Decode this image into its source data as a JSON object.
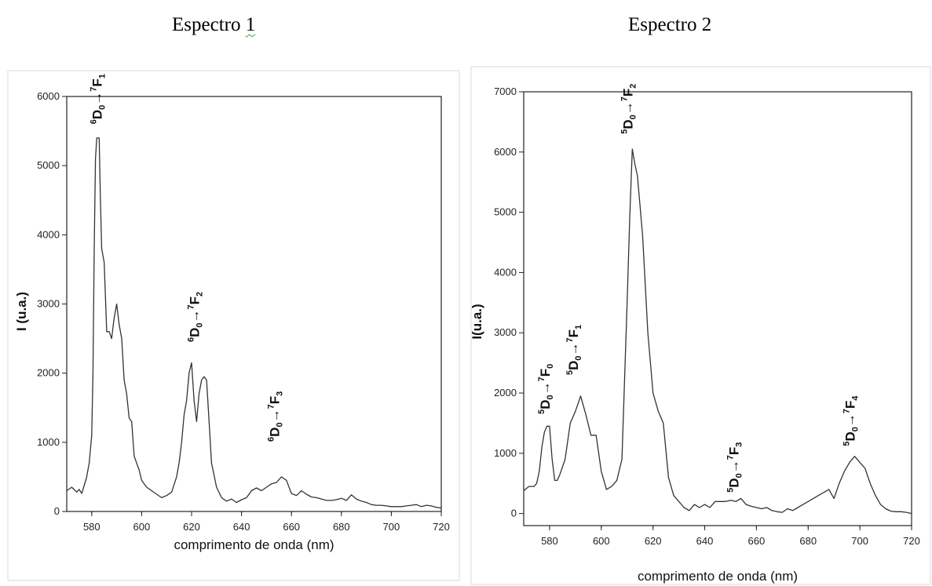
{
  "titles": {
    "left_main": "Espectro ",
    "left_num": "1",
    "right": "Espectro 2"
  },
  "chart_data": [
    {
      "type": "line",
      "title": "Espectro 1",
      "xlabel": "comprimento de onda (nm)",
      "ylabel": "I (u.a.)",
      "xlim": [
        570,
        720
      ],
      "ylim": [
        0,
        6000
      ],
      "xticks": [
        580,
        600,
        620,
        640,
        660,
        680,
        700,
        720
      ],
      "yticks": [
        0,
        1000,
        2000,
        3000,
        4000,
        5000,
        6000
      ],
      "grid": false,
      "series": [
        {
          "x": [
            570,
            572,
            574,
            575,
            576,
            577,
            578,
            579,
            580,
            580.5,
            581,
            581.5,
            582,
            583,
            583.5,
            584,
            585,
            586,
            587,
            588,
            589,
            590,
            591,
            592,
            593,
            594,
            595,
            596,
            597,
            598,
            599,
            600,
            602,
            604,
            606,
            608,
            610,
            612,
            614,
            615,
            616,
            617,
            618,
            619,
            620,
            621,
            622,
            623,
            624,
            625,
            626,
            627,
            628,
            630,
            632,
            634,
            636,
            638,
            640,
            642,
            644,
            646,
            648,
            650,
            652,
            654,
            656,
            658,
            660,
            662,
            664,
            666,
            668,
            670,
            672,
            674,
            676,
            678,
            680,
            682,
            684,
            686,
            688,
            690,
            692,
            694,
            696,
            698,
            700,
            702,
            704,
            706,
            708,
            710,
            712,
            714,
            716,
            718,
            720
          ],
          "y": [
            300,
            350,
            280,
            320,
            260,
            380,
            500,
            700,
            1100,
            2000,
            3800,
            5100,
            5400,
            5400,
            4500,
            3800,
            3600,
            2600,
            2600,
            2500,
            2800,
            3000,
            2700,
            2500,
            1900,
            1700,
            1350,
            1300,
            800,
            700,
            600,
            450,
            350,
            300,
            250,
            200,
            230,
            280,
            500,
            700,
            1000,
            1400,
            1600,
            2000,
            2150,
            1600,
            1300,
            1700,
            1900,
            1950,
            1900,
            1300,
            700,
            350,
            200,
            150,
            180,
            130,
            170,
            200,
            300,
            340,
            300,
            350,
            400,
            420,
            500,
            450,
            260,
            230,
            300,
            250,
            210,
            200,
            180,
            160,
            160,
            170,
            190,
            160,
            240,
            180,
            150,
            130,
            100,
            90,
            90,
            80,
            70,
            70,
            70,
            80,
            90,
            100,
            70,
            90,
            80,
            60,
            50
          ]
        }
      ],
      "annotations": [
        {
          "D": "6",
          "Dsub": "0",
          "F": "7",
          "Fsub": "1",
          "x": 584,
          "y": 5600
        },
        {
          "D": "6",
          "Dsub": "0",
          "F": "7",
          "Fsub": "2",
          "x": 623,
          "y": 2450
        },
        {
          "D": "6",
          "Dsub": "0",
          "F": "7",
          "Fsub": "3",
          "x": 655,
          "y": 1010
        }
      ]
    },
    {
      "type": "line",
      "title": "Espectro 2",
      "xlabel": "comprimento de onda (nm)",
      "ylabel": "I(u.a.)",
      "xlim": [
        570,
        720
      ],
      "ylim": [
        -200,
        7000
      ],
      "xticks": [
        580,
        600,
        620,
        640,
        660,
        680,
        700,
        720
      ],
      "yticks": [
        0,
        1000,
        2000,
        3000,
        4000,
        5000,
        6000,
        7000
      ],
      "grid": false,
      "series": [
        {
          "x": [
            570,
            572,
            574,
            575,
            576,
            577,
            578,
            579,
            580,
            581,
            582,
            583,
            584,
            586,
            588,
            590,
            592,
            594,
            596,
            598,
            600,
            602,
            604,
            606,
            608,
            610,
            611,
            612,
            613,
            614,
            616,
            618,
            620,
            622,
            624,
            626,
            628,
            630,
            632,
            634,
            636,
            638,
            640,
            642,
            644,
            646,
            648,
            650,
            652,
            654,
            656,
            658,
            660,
            662,
            664,
            666,
            668,
            670,
            672,
            674,
            676,
            678,
            680,
            682,
            684,
            686,
            688,
            690,
            692,
            694,
            696,
            698,
            700,
            702,
            704,
            706,
            708,
            710,
            712,
            714,
            716,
            718,
            720
          ],
          "y": [
            380,
            450,
            450,
            500,
            700,
            1100,
            1350,
            1450,
            1450,
            900,
            550,
            550,
            650,
            900,
            1500,
            1700,
            1950,
            1650,
            1300,
            1300,
            700,
            400,
            450,
            550,
            900,
            3500,
            4900,
            6050,
            5800,
            5600,
            4600,
            3000,
            2000,
            1700,
            1500,
            600,
            300,
            200,
            100,
            50,
            150,
            100,
            150,
            100,
            200,
            200,
            200,
            220,
            200,
            250,
            150,
            120,
            100,
            80,
            100,
            50,
            30,
            20,
            80,
            50,
            100,
            150,
            200,
            250,
            300,
            350,
            400,
            250,
            500,
            700,
            850,
            950,
            850,
            750,
            500,
            300,
            150,
            80,
            40,
            30,
            30,
            20,
            0
          ]
        }
      ],
      "annotations": [
        {
          "D": "5",
          "Dsub": "0",
          "F": "7",
          "Fsub": "0",
          "x": 580,
          "y": 1650
        },
        {
          "D": "5",
          "Dsub": "0",
          "F": "7",
          "Fsub": "1",
          "x": 591,
          "y": 2300
        },
        {
          "D": "5",
          "Dsub": "0",
          "F": "7",
          "Fsub": "2",
          "x": 612,
          "y": 6300
        },
        {
          "D": "5",
          "Dsub": "0",
          "F": "7",
          "Fsub": "3",
          "x": 653,
          "y": 350
        },
        {
          "D": "5",
          "Dsub": "0",
          "F": "7",
          "Fsub": "4",
          "x": 698,
          "y": 1120
        }
      ]
    }
  ]
}
